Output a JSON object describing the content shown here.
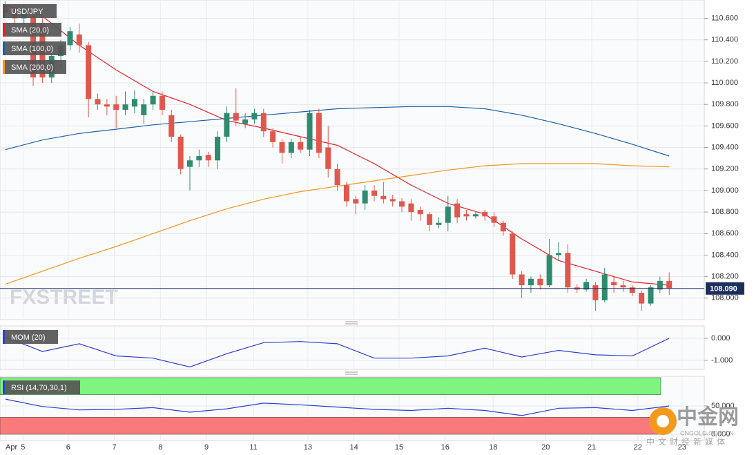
{
  "chart_data": [
    {
      "type": "candlestick",
      "title": "USD/JPY",
      "open": [
        110.72,
        110.65,
        110.6,
        110.62,
        110.55,
        110.05,
        110.25,
        110.35,
        110.45,
        110.35,
        109.85,
        109.8,
        109.8,
        109.75,
        109.78,
        109.7,
        109.8,
        109.88,
        109.7,
        109.5,
        109.22,
        109.28,
        109.33,
        109.28,
        109.5,
        109.72,
        109.62,
        109.66,
        109.72,
        109.55,
        109.45,
        109.35,
        109.45,
        109.38,
        109.72,
        109.4,
        109.2,
        109.05,
        108.92,
        108.88,
        109.0,
        108.95,
        108.92,
        108.9,
        108.88,
        108.82,
        108.78,
        108.68,
        108.7,
        108.88,
        108.78,
        108.76,
        108.8,
        108.76,
        108.7,
        108.6,
        108.22,
        108.12,
        108.18,
        108.12,
        108.4,
        108.42,
        108.1,
        108.08,
        108.12,
        107.98,
        108.15,
        108.12,
        108.1,
        108.05,
        107.95,
        108.08,
        108.16
      ],
      "high": [
        110.76,
        110.7,
        110.72,
        110.66,
        110.6,
        110.3,
        110.4,
        110.52,
        110.55,
        110.38,
        109.9,
        109.85,
        109.88,
        109.92,
        109.93,
        109.85,
        109.92,
        109.92,
        109.75,
        109.52,
        109.32,
        109.38,
        109.36,
        109.55,
        109.78,
        109.95,
        109.72,
        109.76,
        109.76,
        109.58,
        109.48,
        109.48,
        109.5,
        109.75,
        109.76,
        109.6,
        109.25,
        109.08,
        108.95,
        109.05,
        109.05,
        109.08,
        108.96,
        108.93,
        108.92,
        108.85,
        108.8,
        108.75,
        108.95,
        108.92,
        108.82,
        108.8,
        108.82,
        108.8,
        108.72,
        108.62,
        108.25,
        108.2,
        108.22,
        108.55,
        108.52,
        108.5,
        108.13,
        108.18,
        108.15,
        108.28,
        108.2,
        108.16,
        108.12,
        108.07,
        108.12,
        108.2,
        108.24
      ],
      "low": [
        110.62,
        110.55,
        110.55,
        109.97,
        110.0,
        110.0,
        110.15,
        110.3,
        110.28,
        109.68,
        109.75,
        109.7,
        109.58,
        109.7,
        109.72,
        109.62,
        109.75,
        109.7,
        109.45,
        109.15,
        109.0,
        109.22,
        109.22,
        109.2,
        109.45,
        109.6,
        109.58,
        109.62,
        109.5,
        109.4,
        109.25,
        109.3,
        109.35,
        109.32,
        109.3,
        109.12,
        109.0,
        108.85,
        108.78,
        108.82,
        108.9,
        108.88,
        108.85,
        108.8,
        108.72,
        108.72,
        108.62,
        108.65,
        108.62,
        108.7,
        108.72,
        108.74,
        108.72,
        108.66,
        108.58,
        108.18,
        108.0,
        108.05,
        108.08,
        108.1,
        108.35,
        108.05,
        108.05,
        108.06,
        107.88,
        107.96,
        108.05,
        108.06,
        108.02,
        107.88,
        107.93,
        108.05,
        108.03
      ],
      "close": [
        110.65,
        110.6,
        110.68,
        110.05,
        110.05,
        110.25,
        110.35,
        110.48,
        110.35,
        109.85,
        109.8,
        109.78,
        109.75,
        109.8,
        109.85,
        109.8,
        109.88,
        109.75,
        109.5,
        109.2,
        109.28,
        109.32,
        109.28,
        109.5,
        109.72,
        109.65,
        109.66,
        109.72,
        109.55,
        109.45,
        109.35,
        109.45,
        109.38,
        109.72,
        109.35,
        109.2,
        109.05,
        108.9,
        108.88,
        109.0,
        108.95,
        108.92,
        108.9,
        108.85,
        108.8,
        108.78,
        108.68,
        108.7,
        108.85,
        108.75,
        108.76,
        108.78,
        108.76,
        108.7,
        108.62,
        108.22,
        108.12,
        108.18,
        108.12,
        108.4,
        108.42,
        108.1,
        108.08,
        108.15,
        107.98,
        108.22,
        108.12,
        108.1,
        108.05,
        107.95,
        108.1,
        108.16,
        108.09
      ],
      "up_color": "#2e8b6f",
      "down_color": "#e0574d",
      "series": [
        {
          "name": "SMA (20,0)",
          "color": "#e8202a",
          "x": [
            0,
            4,
            8,
            12,
            16,
            20,
            24,
            28,
            32,
            36,
            40,
            44,
            48,
            52,
            56,
            60,
            64,
            68,
            72
          ],
          "values": [
            110.72,
            110.62,
            110.35,
            110.12,
            109.92,
            109.8,
            109.65,
            109.58,
            109.5,
            109.42,
            109.25,
            109.05,
            108.88,
            108.78,
            108.55,
            108.35,
            108.25,
            108.15,
            108.12
          ]
        },
        {
          "name": "SMA (100,0)",
          "color": "#1f5fa8",
          "x": [
            0,
            4,
            8,
            12,
            16,
            20,
            24,
            28,
            32,
            36,
            40,
            44,
            48,
            52,
            56,
            60,
            64,
            68,
            72
          ],
          "values": [
            109.38,
            109.47,
            109.53,
            109.57,
            109.61,
            109.64,
            109.67,
            109.7,
            109.73,
            109.76,
            109.77,
            109.78,
            109.78,
            109.76,
            109.7,
            109.62,
            109.53,
            109.43,
            109.32
          ]
        },
        {
          "name": "SMA (200,0)",
          "color": "#f5951d",
          "x": [
            0,
            4,
            8,
            12,
            16,
            20,
            24,
            28,
            32,
            36,
            40,
            44,
            48,
            52,
            56,
            60,
            64,
            68,
            72
          ],
          "values": [
            108.13,
            108.25,
            108.37,
            108.48,
            108.6,
            108.72,
            108.83,
            108.92,
            108.99,
            109.04,
            109.09,
            109.14,
            109.19,
            109.23,
            109.25,
            109.25,
            109.25,
            109.23,
            109.22
          ]
        }
      ],
      "last_price": {
        "value": 108.09,
        "label": "108.090"
      },
      "ylim": [
        107.8,
        110.77
      ],
      "yticks": [
        {
          "value": 108.0,
          "label": "108.000"
        },
        {
          "value": 108.2,
          "label": "108.200"
        },
        {
          "value": 108.4,
          "label": "108.400"
        },
        {
          "value": 108.6,
          "label": "108.600"
        },
        {
          "value": 108.8,
          "label": "108.800"
        },
        {
          "value": 109.0,
          "label": "109.000"
        },
        {
          "value": 109.2,
          "label": "109.200"
        },
        {
          "value": 109.4,
          "label": "109.400"
        },
        {
          "value": 109.6,
          "label": "109.600"
        },
        {
          "value": 109.8,
          "label": "109.800"
        },
        {
          "value": 110.0,
          "label": "110.000"
        },
        {
          "value": 110.2,
          "label": "110.200"
        },
        {
          "value": 110.4,
          "label": "110.400"
        },
        {
          "value": 110.6,
          "label": "110.600"
        }
      ],
      "xlim": [
        -0.6,
        81.2
      ],
      "xticks": [
        {
          "value": 0,
          "label": "Apr"
        },
        {
          "value": 1.9,
          "label": "5"
        },
        {
          "value": 6.8,
          "label": "6"
        },
        {
          "value": 11.8,
          "label": "7"
        },
        {
          "value": 16.8,
          "label": "8"
        },
        {
          "value": 21.8,
          "label": "9"
        },
        {
          "value": 26.9,
          "label": "11"
        },
        {
          "value": 32.8,
          "label": "13"
        },
        {
          "value": 37.8,
          "label": "14"
        },
        {
          "value": 42.7,
          "label": "15"
        },
        {
          "value": 47.7,
          "label": "16"
        },
        {
          "value": 52.9,
          "label": "18"
        },
        {
          "value": 58.6,
          "label": "20"
        },
        {
          "value": 63.6,
          "label": "21"
        },
        {
          "value": 68.6,
          "label": "22"
        },
        {
          "value": 73.4,
          "label": "23"
        }
      ],
      "grid": true,
      "watermark": "FXSTREET"
    },
    {
      "type": "line",
      "series": [
        {
          "name": "MOM (20)",
          "color": "#2a3fd1",
          "x": [
            0,
            4,
            8,
            12,
            16,
            20,
            24,
            28,
            32,
            36,
            40,
            44,
            48,
            52,
            56,
            60,
            64,
            68,
            72
          ],
          "values": [
            0.05,
            -0.6,
            -0.25,
            -0.8,
            -0.9,
            -1.3,
            -0.7,
            -0.2,
            -0.15,
            -0.25,
            -0.9,
            -0.9,
            -0.8,
            -0.45,
            -0.85,
            -0.55,
            -0.75,
            -0.8,
            0.0
          ]
        }
      ],
      "ylim": [
        -1.41,
        0.56
      ],
      "yticks": [
        {
          "value": 0,
          "label": "0.000"
        },
        {
          "value": -1,
          "label": "-1.000"
        }
      ]
    },
    {
      "type": "line",
      "series": [
        {
          "name": "RSI (14,70,30,1)",
          "color": "#2a3fd1",
          "x": [
            0,
            4,
            8,
            12,
            16,
            20,
            24,
            28,
            32,
            36,
            40,
            44,
            48,
            52,
            56,
            60,
            64,
            68,
            72
          ],
          "values": [
            62,
            49,
            43,
            44,
            47,
            39,
            45,
            55,
            52,
            48,
            44,
            42,
            46,
            42,
            33,
            46,
            47,
            42,
            50
          ]
        }
      ],
      "bands": [
        {
          "from": 70,
          "to": 100,
          "color": "#7ef57e"
        },
        {
          "from": 0,
          "to": 30,
          "color": "#f87a7a"
        }
      ],
      "ylim": [
        -11,
        102.4
      ],
      "yticks": [
        {
          "value": 50,
          "label": "50.000"
        },
        {
          "value": 0,
          "label": "0.000"
        }
      ]
    }
  ],
  "logo": {
    "name": "中金网",
    "site": "CNGOLD.COM.CN",
    "slogan": "中文财经新媒体"
  }
}
